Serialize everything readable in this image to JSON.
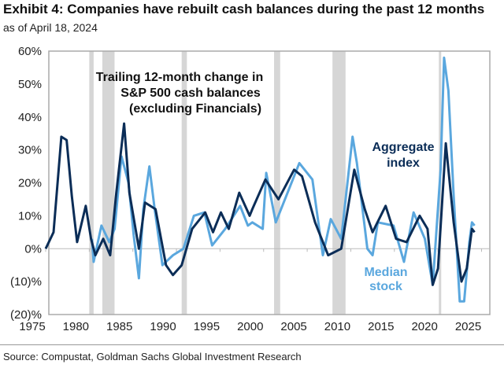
{
  "header": {
    "title": "Exhibit 4: Companies have rebuilt cash balances during the past 12 months",
    "subtitle": "as of April 18, 2024"
  },
  "footer": {
    "source": "Source: Compustat, Goldman Sachs Global Investment Research"
  },
  "chart_data": {
    "type": "line",
    "title": "Trailing 12-month change in S&P 500 cash balances (excluding Financials)",
    "title_lines": [
      "Trailing 12-month change in",
      "S&P 500 cash balances",
      "(excluding Financials)"
    ],
    "xlabel": "",
    "ylabel": "",
    "xlim": [
      1975,
      2026.5
    ],
    "ylim": [
      -20,
      60
    ],
    "x_ticks": [
      "1975",
      "1980",
      "1985",
      "1990",
      "1995",
      "2000",
      "2005",
      "2010",
      "2015",
      "2020",
      "2025"
    ],
    "y_ticks": [
      {
        "v": 60,
        "label": "60%"
      },
      {
        "v": 50,
        "label": "50%"
      },
      {
        "v": 40,
        "label": "40%"
      },
      {
        "v": 30,
        "label": "30%"
      },
      {
        "v": 20,
        "label": "20%"
      },
      {
        "v": 10,
        "label": "10%"
      },
      {
        "v": 0,
        "label": "0%"
      },
      {
        "v": -10,
        "label": "(10)%"
      },
      {
        "v": -20,
        "label": "(20)%"
      }
    ],
    "recessions": [
      [
        1980.0,
        1980.5
      ],
      [
        1981.5,
        1982.9
      ],
      [
        1990.6,
        1991.2
      ],
      [
        2001.2,
        2001.9
      ],
      [
        2007.9,
        2009.4
      ],
      [
        2020.1,
        2020.3
      ]
    ],
    "series": [
      {
        "name": "Aggregate index",
        "label_lines": [
          "Aggregate",
          "index"
        ],
        "color": "#0b2d57",
        "x": [
          1975.0,
          1975.9,
          1976.8,
          1977.4,
          1978.0,
          1978.6,
          1979.6,
          1980.2,
          1980.7,
          1981.6,
          1982.4,
          1983.1,
          1984.0,
          1984.6,
          1985.7,
          1986.4,
          1987.6,
          1988.8,
          1989.6,
          1990.6,
          1991.8,
          1993.3,
          1994.2,
          1995.1,
          1996.0,
          1997.2,
          1998.4,
          1998.7,
          2000.2,
          2001.7,
          2003.5,
          2004.4,
          2005.9,
          2007.4,
          2008.9,
          2010.4,
          2011.6,
          2012.5,
          2014.0,
          2015.2,
          2016.4,
          2017.9,
          2018.8,
          2019.4,
          2020.0,
          2020.9,
          2021.8,
          2022.7,
          2023.3,
          2023.9,
          2024.2
        ],
        "y": [
          0,
          5,
          34,
          33,
          16,
          2,
          13,
          3,
          -2,
          3,
          -2,
          17,
          38,
          17,
          0,
          14,
          12,
          -5,
          -8,
          -5,
          6,
          11,
          5,
          11,
          6,
          17,
          10,
          12,
          21,
          15,
          24,
          22,
          8,
          -2,
          0,
          24,
          12,
          5,
          13,
          3,
          2,
          10,
          6,
          -11,
          -6,
          32,
          8,
          -10,
          -6,
          6,
          5
        ]
      },
      {
        "name": "Median stock",
        "label_lines": [
          "Median",
          "stock"
        ],
        "color": "#5aa7de",
        "x": [
          1980.3,
          1980.5,
          1981.4,
          1982.3,
          1982.9,
          1983.7,
          1984.5,
          1985.1,
          1985.7,
          1986.2,
          1986.9,
          1987.5,
          1988.4,
          1989.6,
          1990.8,
          1992.0,
          1993.2,
          1994.1,
          1995.6,
          1997.3,
          1998.2,
          1998.7,
          1999.9,
          2000.3,
          2001.4,
          2004.1,
          2005.6,
          2006.8,
          2007.7,
          2008.9,
          2010.2,
          2010.7,
          2011.9,
          2012.5,
          2013.1,
          2014.9,
          2016.1,
          2017.2,
          2018.5,
          2019.4,
          2020.3,
          2020.7,
          2021.2,
          2021.8,
          2022.5,
          2023.0,
          2023.6,
          2023.9,
          2024.2
        ],
        "y": [
          3,
          -4,
          7,
          2,
          6,
          28,
          20,
          4,
          -9,
          12,
          25,
          12,
          -5,
          -2,
          0,
          10,
          11,
          1,
          6,
          13,
          7,
          8,
          6,
          23,
          8,
          26,
          21,
          -2,
          9,
          3,
          34,
          26,
          0,
          -2,
          8,
          7,
          -4,
          11,
          3,
          -11,
          24,
          58,
          48,
          16,
          -16,
          -16,
          2,
          8,
          7
        ]
      }
    ]
  }
}
